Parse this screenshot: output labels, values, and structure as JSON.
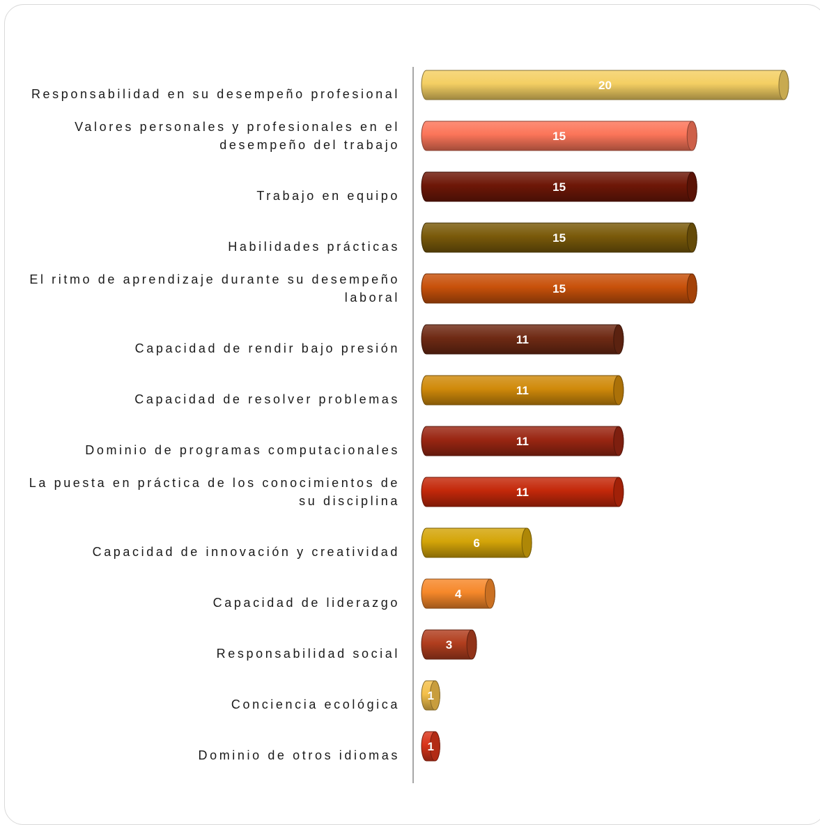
{
  "chart_data": {
    "type": "bar",
    "orientation": "horizontal",
    "style": "3d-cylinder",
    "categories": [
      [
        "Responsabilidad en su desempeño profesional"
      ],
      [
        "Valores personales y profesionales en el",
        "desempeño del trabajo"
      ],
      [
        "Trabajo en equipo"
      ],
      [
        "Habilidades prácticas"
      ],
      [
        "El ritmo de aprendizaje durante su desempeño",
        "laboral"
      ],
      [
        "Capacidad de rendir bajo presión"
      ],
      [
        "Capacidad de resolver problemas "
      ],
      [
        "Dominio de programas computacionales"
      ],
      [
        "La puesta en práctica de los conocimientos de",
        "su disciplina"
      ],
      [
        "Capacidad de innovación y creatividad"
      ],
      [
        "Capacidad de liderazgo"
      ],
      [
        "Responsabilidad social"
      ],
      [
        "Conciencia ecológica"
      ],
      [
        "Dominio de otros idiomas"
      ]
    ],
    "values": [
      20,
      15,
      15,
      15,
      15,
      11,
      11,
      11,
      11,
      6,
      4,
      3,
      1,
      1
    ],
    "colors": [
      "#f4cf63",
      "#fb7559",
      "#6e1707",
      "#7a5a0a",
      "#c8510a",
      "#6f2a14",
      "#d08a0a",
      "#9a2612",
      "#c4280a",
      "#d4a509",
      "#f6882a",
      "#b13e1e",
      "#f4c04a",
      "#d9341a"
    ],
    "data_labels": [
      "20",
      "15",
      "15",
      "15",
      "15",
      "11",
      "11",
      "11",
      "11",
      "6",
      "4",
      "3",
      "1",
      "1"
    ],
    "xlim": [
      0,
      20
    ],
    "grid": false,
    "legend": "none",
    "title": "",
    "xlabel": "",
    "ylabel": ""
  }
}
